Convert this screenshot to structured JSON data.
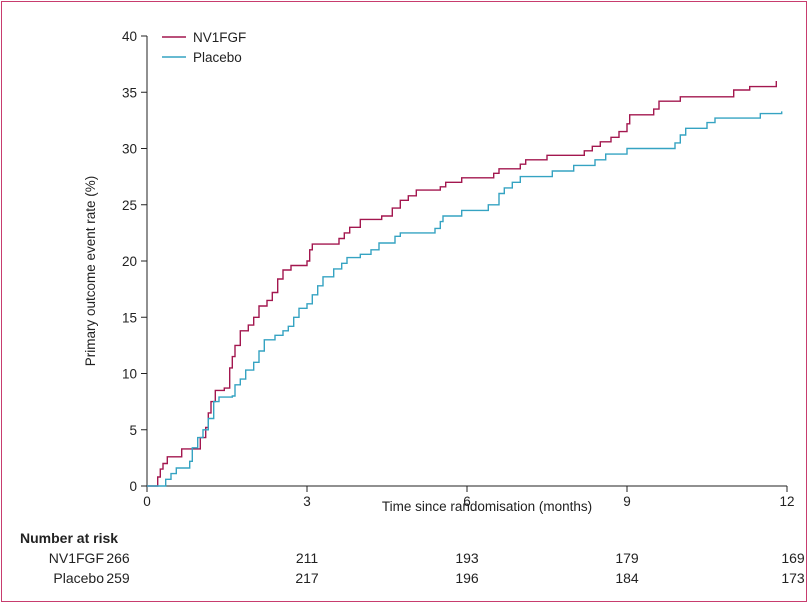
{
  "chart_data": {
    "type": "line",
    "step": true,
    "xlabel": "Time since randomisation (months)",
    "ylabel": "Primary outcome event rate (%)",
    "xlim": [
      0,
      12
    ],
    "ylim": [
      0,
      40
    ],
    "xticks": [
      0,
      3,
      6,
      9,
      12
    ],
    "yticks": [
      0,
      5,
      10,
      15,
      20,
      25,
      30,
      35,
      40
    ],
    "grid": false,
    "legend_position": "top-left",
    "series": [
      {
        "name": "NV1FGF",
        "color": "#a3174f",
        "points": [
          [
            0,
            0
          ],
          [
            0.2,
            0.8
          ],
          [
            0.25,
            1.5
          ],
          [
            0.3,
            2.0
          ],
          [
            0.38,
            2.6
          ],
          [
            0.6,
            2.6
          ],
          [
            0.65,
            3.3
          ],
          [
            0.95,
            3.3
          ],
          [
            1.0,
            4.3
          ],
          [
            1.1,
            5.2
          ],
          [
            1.15,
            6.5
          ],
          [
            1.2,
            7.5
          ],
          [
            1.28,
            8.5
          ],
          [
            1.45,
            8.7
          ],
          [
            1.55,
            10.5
          ],
          [
            1.6,
            11.5
          ],
          [
            1.65,
            12.5
          ],
          [
            1.75,
            13.8
          ],
          [
            1.9,
            14.3
          ],
          [
            2.0,
            15.0
          ],
          [
            2.1,
            16.0
          ],
          [
            2.25,
            16.5
          ],
          [
            2.35,
            17.2
          ],
          [
            2.45,
            18.4
          ],
          [
            2.55,
            19.2
          ],
          [
            2.7,
            19.6
          ],
          [
            3.0,
            20.0
          ],
          [
            3.05,
            21.0
          ],
          [
            3.1,
            21.5
          ],
          [
            3.5,
            21.5
          ],
          [
            3.6,
            22.0
          ],
          [
            3.7,
            22.5
          ],
          [
            3.8,
            23.0
          ],
          [
            4.0,
            23.7
          ],
          [
            4.4,
            24.0
          ],
          [
            4.6,
            24.7
          ],
          [
            4.75,
            25.4
          ],
          [
            4.9,
            25.8
          ],
          [
            5.05,
            26.3
          ],
          [
            5.5,
            26.6
          ],
          [
            5.6,
            27.0
          ],
          [
            5.9,
            27.4
          ],
          [
            6.5,
            27.8
          ],
          [
            6.6,
            28.2
          ],
          [
            7.0,
            28.6
          ],
          [
            7.1,
            29.0
          ],
          [
            7.5,
            29.4
          ],
          [
            8.2,
            29.8
          ],
          [
            8.35,
            30.2
          ],
          [
            8.5,
            30.6
          ],
          [
            8.7,
            31.0
          ],
          [
            8.85,
            31.5
          ],
          [
            9.0,
            32.2
          ],
          [
            9.05,
            33.0
          ],
          [
            9.5,
            33.5
          ],
          [
            9.6,
            34.2
          ],
          [
            10.0,
            34.6
          ],
          [
            11.0,
            35.2
          ],
          [
            11.3,
            35.5
          ],
          [
            11.8,
            36.0
          ]
        ]
      },
      {
        "name": "Placebo",
        "color": "#35a3c2",
        "points": [
          [
            0,
            0
          ],
          [
            0.3,
            0
          ],
          [
            0.35,
            0.6
          ],
          [
            0.45,
            1.1
          ],
          [
            0.55,
            1.6
          ],
          [
            0.8,
            2.2
          ],
          [
            0.85,
            3.4
          ],
          [
            0.95,
            4.3
          ],
          [
            1.05,
            5.0
          ],
          [
            1.15,
            6.0
          ],
          [
            1.25,
            7.5
          ],
          [
            1.35,
            7.9
          ],
          [
            1.6,
            8.0
          ],
          [
            1.65,
            9.0
          ],
          [
            1.75,
            9.5
          ],
          [
            1.85,
            10.3
          ],
          [
            2.0,
            11.0
          ],
          [
            2.1,
            12.0
          ],
          [
            2.2,
            13.0
          ],
          [
            2.4,
            13.4
          ],
          [
            2.55,
            13.8
          ],
          [
            2.65,
            14.2
          ],
          [
            2.75,
            15.0
          ],
          [
            2.85,
            15.8
          ],
          [
            3.0,
            16.2
          ],
          [
            3.1,
            17.0
          ],
          [
            3.2,
            17.8
          ],
          [
            3.3,
            18.6
          ],
          [
            3.5,
            19.3
          ],
          [
            3.65,
            19.8
          ],
          [
            3.75,
            20.3
          ],
          [
            4.0,
            20.6
          ],
          [
            4.2,
            21.0
          ],
          [
            4.35,
            21.6
          ],
          [
            4.65,
            22.2
          ],
          [
            4.75,
            22.5
          ],
          [
            5.4,
            22.9
          ],
          [
            5.5,
            23.5
          ],
          [
            5.55,
            24.0
          ],
          [
            5.9,
            24.5
          ],
          [
            6.4,
            25.0
          ],
          [
            6.6,
            26.0
          ],
          [
            6.7,
            26.5
          ],
          [
            6.85,
            27.0
          ],
          [
            7.0,
            27.5
          ],
          [
            7.6,
            28.0
          ],
          [
            8.0,
            28.5
          ],
          [
            8.4,
            29.0
          ],
          [
            8.6,
            29.5
          ],
          [
            9.0,
            30.0
          ],
          [
            9.9,
            30.5
          ],
          [
            10.0,
            31.2
          ],
          [
            10.1,
            31.8
          ],
          [
            10.5,
            32.3
          ],
          [
            10.65,
            32.7
          ],
          [
            11.5,
            33.1
          ],
          [
            11.9,
            33.3
          ]
        ]
      }
    ],
    "risk_table": {
      "title": "Number at risk",
      "times": [
        0,
        3,
        6,
        9,
        12
      ],
      "rows": [
        {
          "label": "NV1FGF",
          "values": [
            "266",
            "211",
            "193",
            "179",
            "169"
          ]
        },
        {
          "label": "Placebo",
          "values": [
            "259",
            "217",
            "196",
            "184",
            "173"
          ]
        }
      ]
    }
  }
}
